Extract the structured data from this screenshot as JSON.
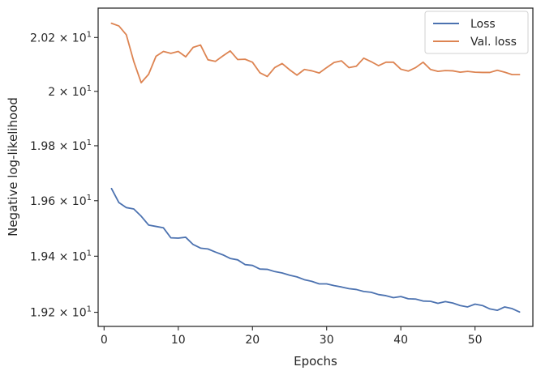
{
  "chart_data": {
    "type": "line",
    "title": "",
    "xlabel": "Epochs",
    "ylabel": "Negative log-likelihood",
    "xlim": [
      -0.8,
      57.8
    ],
    "ylim": [
      19.15,
      20.31
    ],
    "y_scale": "log",
    "x_ticks": [
      {
        "value": 0,
        "label": "0"
      },
      {
        "value": 10,
        "label": "10"
      },
      {
        "value": 20,
        "label": "20"
      },
      {
        "value": 30,
        "label": "30"
      },
      {
        "value": 40,
        "label": "40"
      },
      {
        "value": 50,
        "label": "50"
      }
    ],
    "y_ticks": [
      {
        "value": 19.2,
        "label_mantissa": "1.92",
        "label_base": "10",
        "label_exp": "1"
      },
      {
        "value": 19.4,
        "label_mantissa": "1.94",
        "label_base": "10",
        "label_exp": "1"
      },
      {
        "value": 19.6,
        "label_mantissa": "1.96",
        "label_base": "10",
        "label_exp": "1"
      },
      {
        "value": 19.8,
        "label_mantissa": "1.98",
        "label_base": "10",
        "label_exp": "1"
      },
      {
        "value": 20.0,
        "label_mantissa": "2",
        "label_base": "10",
        "label_exp": "1"
      },
      {
        "value": 20.2,
        "label_mantissa": "2.02",
        "label_base": "10",
        "label_exp": "1"
      }
    ],
    "grid": false,
    "legend_position": "top-right",
    "x": [
      1,
      2,
      3,
      4,
      5,
      6,
      7,
      8,
      9,
      10,
      11,
      12,
      13,
      14,
      15,
      16,
      17,
      18,
      19,
      20,
      21,
      22,
      23,
      24,
      25,
      26,
      27,
      28,
      29,
      30,
      31,
      32,
      33,
      34,
      35,
      36,
      37,
      38,
      39,
      40,
      41,
      42,
      43,
      44,
      45,
      46,
      47,
      48,
      49,
      50,
      51,
      52,
      53,
      54,
      55,
      56
    ],
    "series": [
      {
        "name": "Loss",
        "color": "#4c72b0",
        "values": [
          19.644,
          19.593,
          19.575,
          19.57,
          19.544,
          19.512,
          19.507,
          19.502,
          19.466,
          19.465,
          19.468,
          19.442,
          19.429,
          19.426,
          19.415,
          19.405,
          19.392,
          19.387,
          19.37,
          19.367,
          19.354,
          19.353,
          19.345,
          19.34,
          19.332,
          19.326,
          19.316,
          19.31,
          19.301,
          19.301,
          19.295,
          19.29,
          19.284,
          19.281,
          19.274,
          19.271,
          19.263,
          19.259,
          19.252,
          19.256,
          19.248,
          19.247,
          19.24,
          19.239,
          19.232,
          19.238,
          19.233,
          19.224,
          19.219,
          19.229,
          19.224,
          19.212,
          19.207,
          19.219,
          19.213,
          19.201
        ]
      },
      {
        "name": "Val. loss",
        "color": "#dd8452",
        "values": [
          20.253,
          20.243,
          20.21,
          20.111,
          20.032,
          20.063,
          20.13,
          20.148,
          20.141,
          20.148,
          20.128,
          20.163,
          20.172,
          20.117,
          20.111,
          20.131,
          20.15,
          20.118,
          20.119,
          20.108,
          20.069,
          20.055,
          20.088,
          20.103,
          20.08,
          20.06,
          20.081,
          20.076,
          20.068,
          20.088,
          20.107,
          20.113,
          20.088,
          20.093,
          20.123,
          20.11,
          20.095,
          20.108,
          20.108,
          20.082,
          20.075,
          20.088,
          20.108,
          20.081,
          20.074,
          20.077,
          20.076,
          20.071,
          20.074,
          20.071,
          20.07,
          20.07,
          20.078,
          20.071,
          20.062,
          20.062
        ]
      }
    ]
  }
}
